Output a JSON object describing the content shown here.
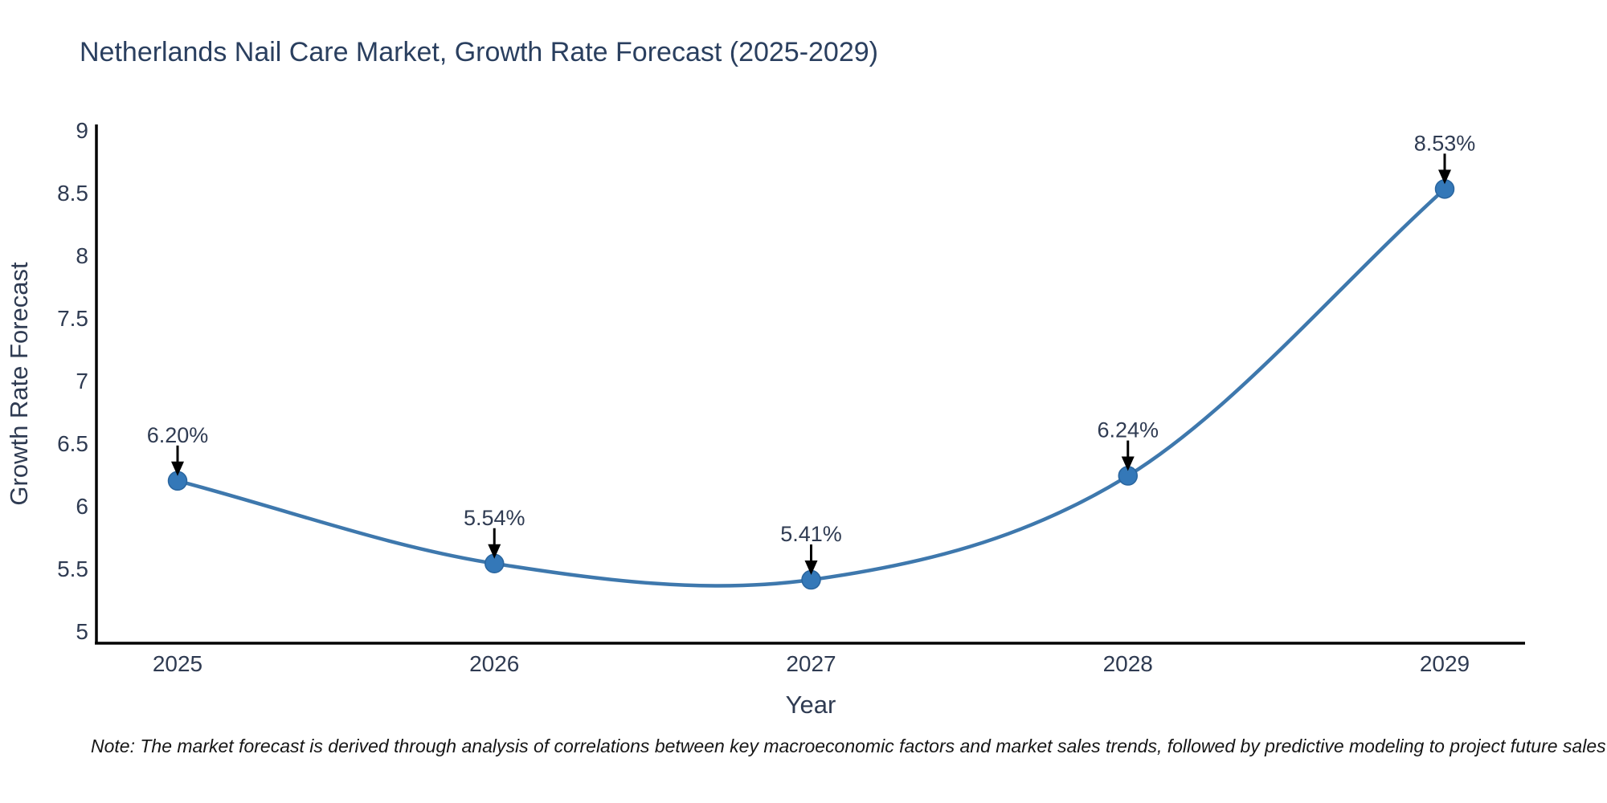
{
  "figure": {
    "title": "Netherlands Nail Care Market, Growth Rate Forecast (2025-2029)",
    "note": "Note: The market forecast is derived through analysis of correlations between key macroeconomic factors and market sales trends, followed by predictive modeling to project future sales"
  },
  "colors": {
    "background": "#ffffff",
    "title_text": "#2a3f5f",
    "tick_text": "#2f3b52",
    "axis_line": "#000000",
    "series_line": "#3e78ad",
    "marker_fill": "#3478b8",
    "marker_edge": "#2a659e",
    "arrow": "#000000",
    "note_text": "#161616"
  },
  "chart_data": {
    "type": "line",
    "line_shape": "spline",
    "title": "Netherlands Nail Care Market, Growth Rate Forecast (2025-2029)",
    "xlabel": "Year",
    "ylabel": "Growth Rate Forecast",
    "x": [
      2025,
      2026,
      2027,
      2028,
      2029
    ],
    "series": [
      {
        "name": "Growth Rate Forecast",
        "values": [
          6.2,
          5.54,
          5.41,
          6.24,
          8.53
        ]
      }
    ],
    "point_labels": [
      "6.20%",
      "5.54%",
      "5.41%",
      "6.24%",
      "8.53%"
    ],
    "annotation_style": "black down-arrow from label to marker",
    "ytick_labels": [
      "9",
      "8.5",
      "8",
      "7.5",
      "7",
      "6.5",
      "6",
      "5.5",
      "5"
    ],
    "yticks": [
      9,
      8.5,
      8,
      7.5,
      7,
      6.5,
      6,
      5.5,
      5
    ],
    "ylim": [
      4.9,
      9.05
    ],
    "grid": false,
    "legend": "none",
    "markers": true
  }
}
